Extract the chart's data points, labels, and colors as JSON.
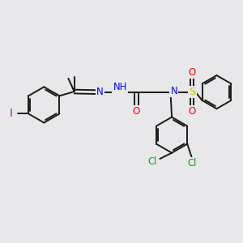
{
  "bg_color": "#e8e8eb",
  "bond_color": "#1a1a1a",
  "atom_colors": {
    "N": "#0000ff",
    "O": "#ff0000",
    "S": "#cccc00",
    "Cl": "#00aa00",
    "I": "#cc00cc",
    "C": "#1a1a1a"
  },
  "font_size": 8.0,
  "figsize": [
    3.0,
    3.0
  ],
  "dpi": 100,
  "xlim": [
    0,
    10
  ],
  "ylim": [
    0,
    10
  ]
}
